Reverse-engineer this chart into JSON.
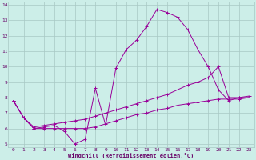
{
  "xlabel": "Windchill (Refroidissement éolien,°C)",
  "xlim": [
    -0.5,
    23.5
  ],
  "ylim": [
    4.8,
    14.2
  ],
  "xticks": [
    0,
    1,
    2,
    3,
    4,
    5,
    6,
    7,
    8,
    9,
    10,
    11,
    12,
    13,
    14,
    15,
    16,
    17,
    18,
    19,
    20,
    21,
    22,
    23
  ],
  "yticks": [
    5,
    6,
    7,
    8,
    9,
    10,
    11,
    12,
    13,
    14
  ],
  "bg_color": "#cceee8",
  "line_color": "#990099",
  "grid_color": "#a8c8c4",
  "series": [
    {
      "x": [
        0,
        1,
        2,
        3,
        4,
        5,
        6,
        7,
        8,
        9,
        10,
        11,
        12,
        13,
        14,
        15,
        16,
        17,
        18,
        19,
        20,
        21,
        22,
        23
      ],
      "y": [
        7.8,
        6.7,
        6.0,
        6.1,
        6.2,
        5.8,
        5.0,
        5.3,
        8.6,
        6.2,
        9.9,
        11.1,
        11.7,
        12.6,
        13.7,
        13.5,
        13.2,
        12.4,
        11.1,
        10.0,
        8.5,
        7.8,
        8.0,
        8.0
      ]
    },
    {
      "x": [
        0,
        1,
        2,
        3,
        4,
        5,
        6,
        7,
        8,
        9,
        10,
        11,
        12,
        13,
        14,
        15,
        16,
        17,
        18,
        19,
        20,
        21,
        22,
        23
      ],
      "y": [
        7.8,
        6.7,
        6.1,
        6.2,
        6.3,
        6.4,
        6.5,
        6.6,
        6.8,
        7.0,
        7.2,
        7.4,
        7.6,
        7.8,
        8.0,
        8.2,
        8.5,
        8.8,
        9.0,
        9.3,
        10.0,
        8.0,
        8.0,
        8.1
      ]
    },
    {
      "x": [
        0,
        1,
        2,
        3,
        4,
        5,
        6,
        7,
        8,
        9,
        10,
        11,
        12,
        13,
        14,
        15,
        16,
        17,
        18,
        19,
        20,
        21,
        22,
        23
      ],
      "y": [
        7.8,
        6.7,
        6.0,
        6.0,
        6.0,
        6.0,
        6.0,
        6.0,
        6.1,
        6.3,
        6.5,
        6.7,
        6.9,
        7.0,
        7.2,
        7.3,
        7.5,
        7.6,
        7.7,
        7.8,
        7.9,
        7.9,
        7.9,
        8.0
      ]
    }
  ]
}
